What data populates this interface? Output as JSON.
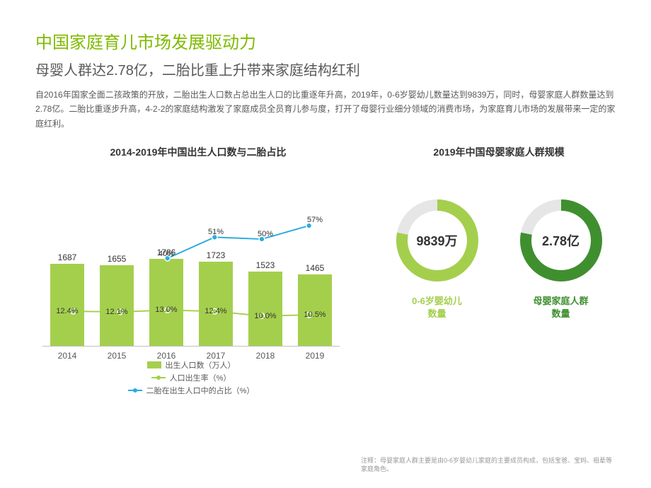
{
  "header": {
    "title": "中国家庭育儿市场发展驱动力",
    "subtitle": "母婴人群达2.78亿，二胎比重上升带来家庭结构红利",
    "description": "自2016年国家全面二孩政策的开放，二胎出生人口数占总出生人口的比重逐年升高，2019年，0-6岁婴幼儿数量达到9839万，同时，母婴家庭人群数量达到2.78亿。二胎比重逐步升高，4-2-2的家庭结构激发了家庭成员全员育儿参与度，打开了母婴行业细分领域的消费市场，为家庭育儿市场的发展带来一定的家庭红利。"
  },
  "bar_chart": {
    "type": "bar+line",
    "title": "2014-2019年中国出生人口数与二胎占比",
    "categories": [
      "2014",
      "2015",
      "2016",
      "2017",
      "2018",
      "2019"
    ],
    "bar_values": [
      1687,
      1655,
      1786,
      1723,
      1523,
      1465
    ],
    "bar_color": "#a4cf4d",
    "bar_max": 1900,
    "birth_rate_pct": [
      12.4,
      12.1,
      13.0,
      12.4,
      10.0,
      10.5
    ],
    "birth_rate_labels": [
      "12.4%",
      "12.1%",
      "13.0%",
      "12.4%",
      "10.0%",
      "10.5%"
    ],
    "birth_rate_color": "#a4cf4d",
    "second_child_pct": [
      null,
      null,
      40,
      51,
      50,
      57
    ],
    "second_child_labels": [
      "",
      "",
      "40%",
      "51%",
      "50%",
      "57%"
    ],
    "second_child_color": "#29abe2",
    "line_ymax": 80,
    "label_fontsize": 12,
    "axis_color": "#bfbfbf",
    "legend": {
      "bar": "出生人口数（万人）",
      "line1": "人口出生率（%）",
      "line2": "二胎在出生人口中的占比（%）"
    }
  },
  "donut_chart": {
    "title": "2019年中国母婴家庭人群规模",
    "background_ring": "#e6e6e6",
    "donuts": [
      {
        "center": "9839万",
        "label": "0-6岁婴幼儿\n数量",
        "fill_pct": 78,
        "color": "#a4cf4d"
      },
      {
        "center": "2.78亿",
        "label": "母婴家庭人群\n数量",
        "fill_pct": 78,
        "color": "#3f8f2f"
      }
    ]
  },
  "footnote": "注释：母婴家庭人群主要是由0-6岁婴幼儿家庭的主要成员构成，包括宝爸、宝妈、祖辈等家庭角色。"
}
